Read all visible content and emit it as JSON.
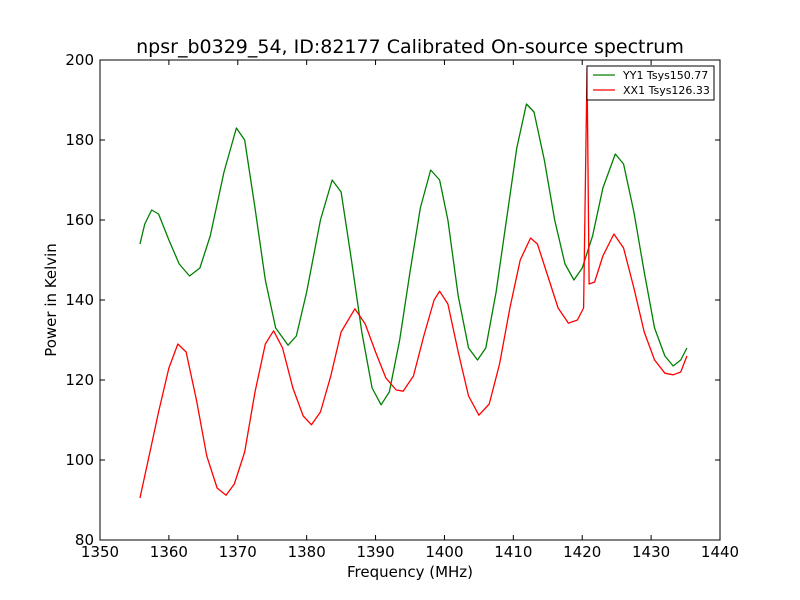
{
  "chart_data": {
    "type": "line",
    "title": "npsr_b0329_54, ID:82177 Calibrated On-source spectrum",
    "xlabel": "Frequency (MHz)",
    "ylabel": "Power in Kelvin",
    "xlim": [
      1350,
      1440
    ],
    "ylim": [
      80,
      200
    ],
    "xticks": [
      1350,
      1360,
      1370,
      1380,
      1390,
      1400,
      1410,
      1420,
      1430,
      1440
    ],
    "yticks": [
      80,
      100,
      120,
      140,
      160,
      180,
      200
    ],
    "grid": false,
    "legend": "top-right",
    "series": [
      {
        "name": "YY1 Tsys150.77",
        "color": "#008000",
        "points": [
          [
            1355.8,
            154
          ],
          [
            1356.5,
            159
          ],
          [
            1357.5,
            162.5
          ],
          [
            1358.5,
            161.5
          ],
          [
            1360,
            155
          ],
          [
            1361.5,
            149
          ],
          [
            1363,
            146
          ],
          [
            1364.5,
            148
          ],
          [
            1366,
            156
          ],
          [
            1368,
            172
          ],
          [
            1369.8,
            183
          ],
          [
            1371,
            180
          ],
          [
            1372.5,
            163
          ],
          [
            1374,
            145
          ],
          [
            1375.5,
            133
          ],
          [
            1377.3,
            128.7
          ],
          [
            1378.5,
            131
          ],
          [
            1380,
            142
          ],
          [
            1382,
            160
          ],
          [
            1383.7,
            170
          ],
          [
            1385,
            167
          ],
          [
            1386.5,
            150
          ],
          [
            1388,
            132
          ],
          [
            1389.5,
            118
          ],
          [
            1390.8,
            113.8
          ],
          [
            1392,
            117
          ],
          [
            1393.5,
            130
          ],
          [
            1395,
            147
          ],
          [
            1396.5,
            163
          ],
          [
            1398,
            172.5
          ],
          [
            1399.3,
            170
          ],
          [
            1400.5,
            160
          ],
          [
            1402,
            141
          ],
          [
            1403.5,
            128
          ],
          [
            1404.8,
            125
          ],
          [
            1406,
            128
          ],
          [
            1407.5,
            142
          ],
          [
            1409,
            160
          ],
          [
            1410.5,
            178
          ],
          [
            1411.9,
            189
          ],
          [
            1413,
            187
          ],
          [
            1414.5,
            175
          ],
          [
            1416,
            160
          ],
          [
            1417.5,
            149
          ],
          [
            1418.8,
            145
          ],
          [
            1420,
            148
          ],
          [
            1421.5,
            156
          ],
          [
            1423,
            168
          ],
          [
            1424.8,
            176.5
          ],
          [
            1426,
            174
          ],
          [
            1427.5,
            162
          ],
          [
            1429,
            147
          ],
          [
            1430.5,
            133
          ],
          [
            1432,
            126
          ],
          [
            1433.2,
            123.5
          ],
          [
            1434.3,
            125
          ],
          [
            1435.2,
            128
          ]
        ]
      },
      {
        "name": "XX1 Tsys126.33",
        "color": "#ff0000",
        "points": [
          [
            1355.8,
            90.5
          ],
          [
            1357,
            100
          ],
          [
            1358.5,
            112
          ],
          [
            1360,
            123
          ],
          [
            1361.3,
            129
          ],
          [
            1362.5,
            127
          ],
          [
            1364,
            115
          ],
          [
            1365.5,
            101
          ],
          [
            1367,
            93
          ],
          [
            1368.3,
            91.2
          ],
          [
            1369.5,
            94
          ],
          [
            1371,
            102
          ],
          [
            1372.5,
            117
          ],
          [
            1374,
            129
          ],
          [
            1375.2,
            132.3
          ],
          [
            1376.5,
            128
          ],
          [
            1378,
            118
          ],
          [
            1379.5,
            111
          ],
          [
            1380.7,
            108.8
          ],
          [
            1382,
            112
          ],
          [
            1383.5,
            121
          ],
          [
            1385,
            132
          ],
          [
            1387,
            137.8
          ],
          [
            1388.5,
            134
          ],
          [
            1390,
            127
          ],
          [
            1391.5,
            120.5
          ],
          [
            1393,
            117.5
          ],
          [
            1394,
            117.2
          ],
          [
            1395.5,
            121
          ],
          [
            1397,
            131
          ],
          [
            1398.5,
            140
          ],
          [
            1399.3,
            142.2
          ],
          [
            1400.5,
            139
          ],
          [
            1402,
            127
          ],
          [
            1403.5,
            116
          ],
          [
            1405,
            111.2
          ],
          [
            1406.5,
            114
          ],
          [
            1408,
            124
          ],
          [
            1409.5,
            138
          ],
          [
            1411,
            150
          ],
          [
            1412.5,
            155.5
          ],
          [
            1413.5,
            154
          ],
          [
            1415,
            146
          ],
          [
            1416.5,
            138
          ],
          [
            1418,
            134.2
          ],
          [
            1419.3,
            135
          ],
          [
            1420.2,
            138
          ],
          [
            1420.7,
            198
          ],
          [
            1421,
            144
          ],
          [
            1421.8,
            144.5
          ],
          [
            1423,
            151
          ],
          [
            1424.6,
            156.5
          ],
          [
            1426,
            153
          ],
          [
            1427.5,
            143
          ],
          [
            1429,
            132
          ],
          [
            1430.5,
            125
          ],
          [
            1432,
            121.7
          ],
          [
            1433.2,
            121.3
          ],
          [
            1434.3,
            122
          ],
          [
            1435.2,
            126
          ]
        ]
      }
    ]
  }
}
